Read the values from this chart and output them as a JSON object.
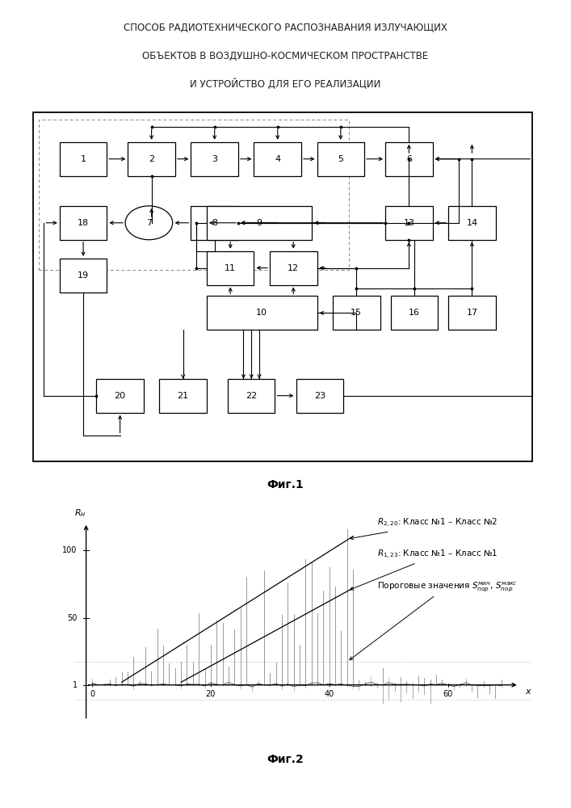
{
  "title_lines": [
    "СПОСОБ РАДИОТЕХНИЧЕСКОГО РАСПОЗНАВАНИЯ ИЗЛУЧАЮЩИХ",
    "ОБЪЕКТОВ В ВОЗДУШНО-КОСМИЧЕСКОМ ПРОСТРАНСТВЕ",
    "И УСТРОЙСТВО ДЛЯ ЕГО РЕАЛИЗАЦИИ"
  ],
  "fig1_label": "Фиг.1",
  "fig2_label": "Фиг.2",
  "bg_color": "#ffffff",
  "annotation1": "$R_{2,20}$: Класс №1 – Класс №2",
  "annotation2": "$R_{1,23}$: Класс №1 – Класс №1",
  "annotation3": "Пороговые значения $S_{пор}^{мин}$, $S_{пор}^{макс}$",
  "ylabel": "$R_н$",
  "xlabel": "$x$",
  "ytick_vals": [
    1,
    50,
    100
  ],
  "ytick_labels": [
    "1",
    "50",
    "100"
  ],
  "xtick_vals": [
    0,
    20,
    40,
    60
  ],
  "xtick_labels": [
    "0",
    "20",
    "40",
    "60"
  ]
}
